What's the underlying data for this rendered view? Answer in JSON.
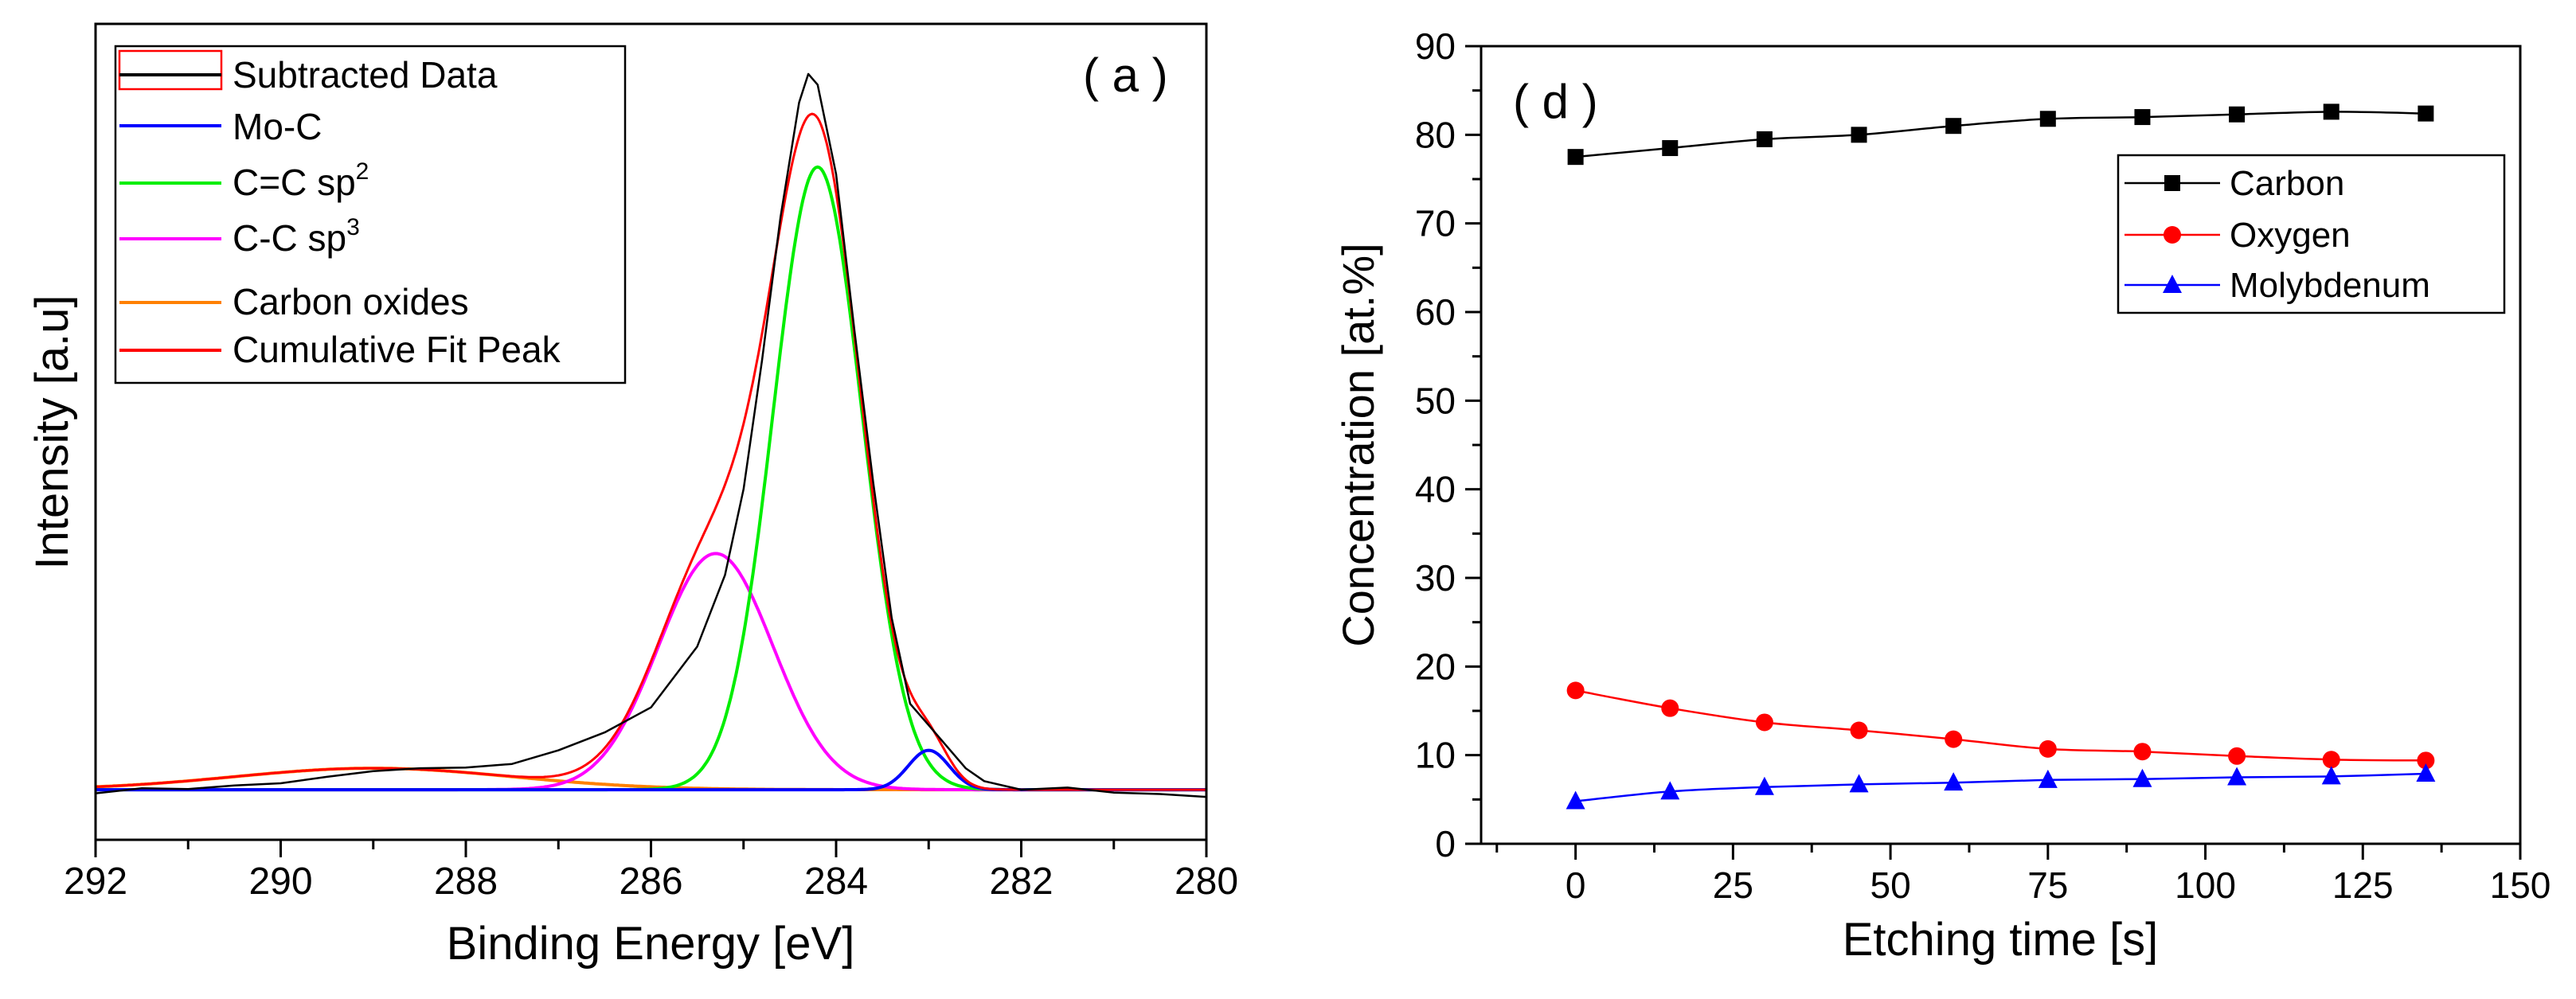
{
  "chart_data": [
    {
      "type": "line",
      "panel_label": "( a )",
      "xlabel": "Binding Energy [eV]",
      "ylabel": "Intensity [a.u]",
      "xlim": [
        292,
        280
      ],
      "x_reversed": true,
      "ylim": [
        -0.07,
        1.07
      ],
      "xticks": [
        "292",
        "290",
        "288",
        "286",
        "284",
        "282",
        "280"
      ],
      "legend": [
        {
          "label": "Subtracted Data",
          "sup": "",
          "color": "#000000",
          "box": "#ff0000"
        },
        {
          "label": "Mo-C",
          "sup": "",
          "color": "#0000ff"
        },
        {
          "label": "C=C sp",
          "sup": "2",
          "color": "#00ee00"
        },
        {
          "label": "C-C sp",
          "sup": "3",
          "color": "#ff00ff"
        },
        {
          "label": "Carbon oxides",
          "sup": "",
          "color": "#ff8000"
        },
        {
          "label": "Cumulative Fit Peak",
          "sup": "",
          "color": "#ff0000"
        }
      ],
      "colors": {
        "data": "#000000",
        "moc": "#0000ff",
        "sp2": "#00ee00",
        "sp3": "#ff00ff",
        "oxides": "#ff8000",
        "fit": "#ff0000"
      },
      "peaks": {
        "moc": {
          "center": 283.0,
          "height": 0.055,
          "sigma": 0.22
        },
        "sp2": {
          "center": 284.2,
          "height": 0.87,
          "sigma": 0.48
        },
        "sp3": {
          "center": 285.3,
          "height": 0.33,
          "sigma": 0.62
        },
        "oxides": {
          "center": 289.0,
          "height": 0.03,
          "sigma": 1.5
        }
      },
      "subtracted_data": [
        [
          292.0,
          -0.005
        ],
        [
          291.5,
          0.002
        ],
        [
          291.0,
          0.001
        ],
        [
          290.5,
          0.006
        ],
        [
          290.0,
          0.009
        ],
        [
          289.5,
          0.018
        ],
        [
          289.0,
          0.026
        ],
        [
          288.5,
          0.03
        ],
        [
          288.0,
          0.031
        ],
        [
          287.5,
          0.036
        ],
        [
          287.0,
          0.055
        ],
        [
          286.5,
          0.08
        ],
        [
          286.0,
          0.115
        ],
        [
          285.5,
          0.2
        ],
        [
          285.2,
          0.3
        ],
        [
          285.0,
          0.42
        ],
        [
          284.8,
          0.6
        ],
        [
          284.6,
          0.8
        ],
        [
          284.4,
          0.96
        ],
        [
          284.3,
          1.0
        ],
        [
          284.2,
          0.985
        ],
        [
          284.0,
          0.86
        ],
        [
          283.8,
          0.64
        ],
        [
          283.6,
          0.43
        ],
        [
          283.4,
          0.24
        ],
        [
          283.2,
          0.12
        ],
        [
          283.0,
          0.09
        ],
        [
          282.8,
          0.06
        ],
        [
          282.6,
          0.03
        ],
        [
          282.4,
          0.012
        ],
        [
          282.0,
          0.0
        ],
        [
          281.5,
          0.003
        ],
        [
          281.0,
          -0.004
        ],
        [
          280.5,
          -0.006
        ],
        [
          280.0,
          -0.01
        ]
      ]
    },
    {
      "type": "line",
      "panel_label": "( d )",
      "xlabel": "Etching time [s]",
      "ylabel": "Concentration [at.%]",
      "xlim": [
        -15,
        150
      ],
      "ylim": [
        0,
        90
      ],
      "xticks": [
        0,
        25,
        50,
        75,
        100,
        125,
        150
      ],
      "yticks": [
        0,
        10,
        20,
        30,
        40,
        50,
        60,
        70,
        80,
        90
      ],
      "x": [
        0,
        15,
        30,
        45,
        60,
        75,
        90,
        105,
        120,
        135
      ],
      "series": [
        {
          "name": "Carbon",
          "color": "#000000",
          "marker": "square",
          "values": [
            77.5,
            78.5,
            79.5,
            80.0,
            81.0,
            81.8,
            82.0,
            82.3,
            82.6,
            82.4
          ]
        },
        {
          "name": "Oxygen",
          "color": "#ff0000",
          "marker": "circle",
          "values": [
            17.3,
            15.3,
            13.7,
            12.8,
            11.8,
            10.7,
            10.4,
            9.9,
            9.5,
            9.4
          ]
        },
        {
          "name": "Molybdenum",
          "color": "#0000ff",
          "marker": "triangle",
          "values": [
            4.8,
            5.9,
            6.4,
            6.7,
            6.9,
            7.2,
            7.3,
            7.5,
            7.6,
            7.9
          ]
        }
      ]
    }
  ]
}
